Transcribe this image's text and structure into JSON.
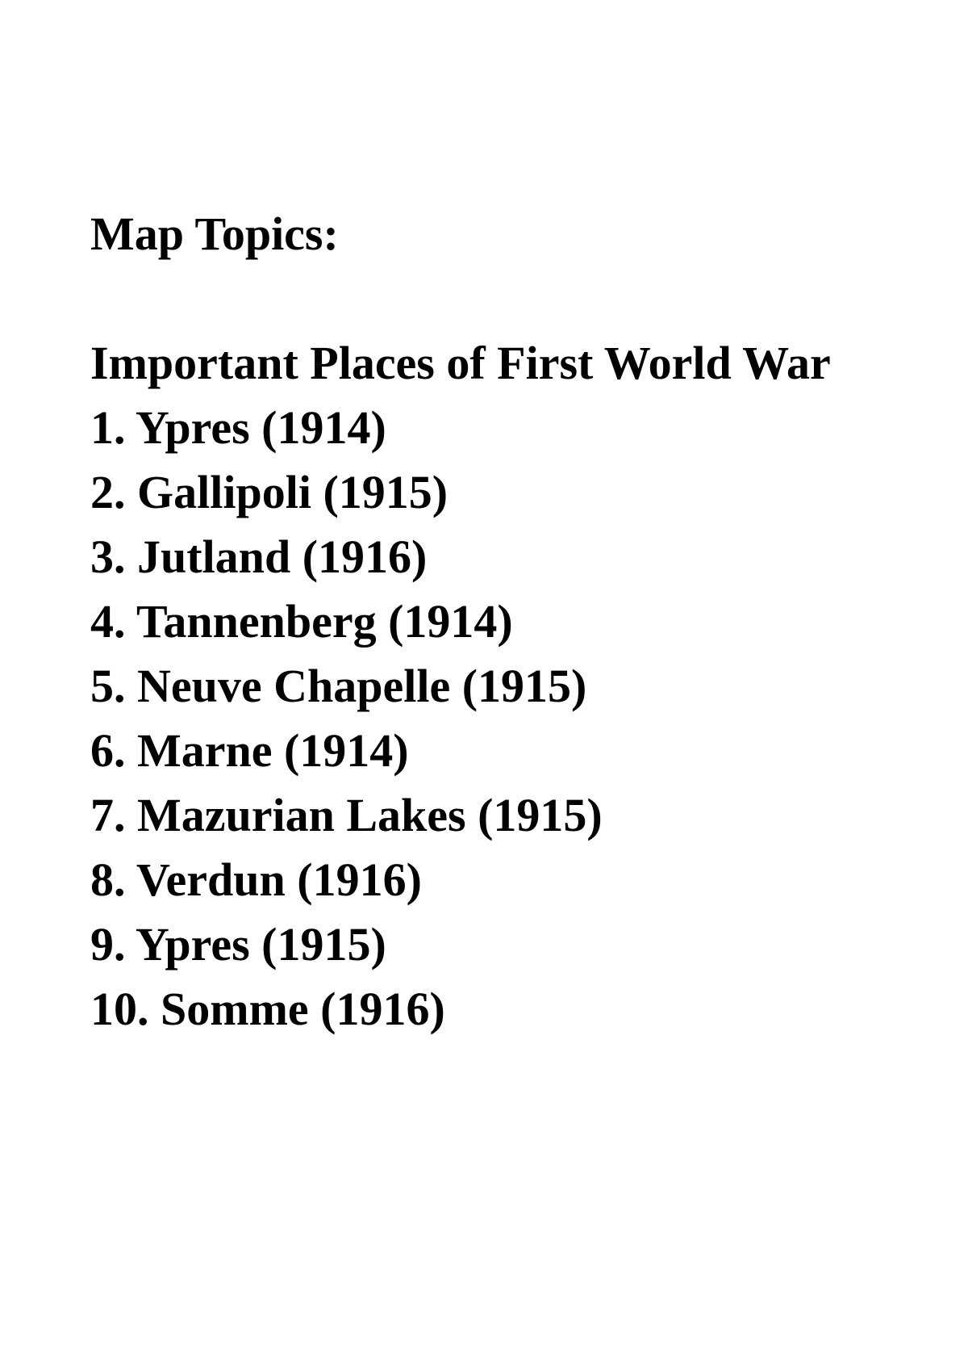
{
  "page": {
    "title": "Map Topics:"
  },
  "list": {
    "heading": "Important Places of First World War",
    "items": [
      {
        "number": "1.",
        "place": "Ypres",
        "year": "1914",
        "text": "1. Ypres (1914)"
      },
      {
        "number": "2.",
        "place": "Gallipoli",
        "year": "1915",
        "text": "2. Gallipoli (1915)"
      },
      {
        "number": "3.",
        "place": "Jutland",
        "year": "1916",
        "text": "3. Jutland (1916)"
      },
      {
        "number": "4.",
        "place": "Tannenberg",
        "year": "1914",
        "text": "4. Tannenberg (1914)"
      },
      {
        "number": "5.",
        "place": "Neuve Chapelle",
        "year": "1915",
        "text": "5. Neuve Chapelle (1915)"
      },
      {
        "number": "6.",
        "place": "Marne",
        "year": "1914",
        "text": "6. Marne (1914)"
      },
      {
        "number": "7.",
        "place": "Mazurian Lakes",
        "year": "1915",
        "text": "7. Mazurian Lakes (1915)"
      },
      {
        "number": "8.",
        "place": "Verdun",
        "year": "1916",
        "text": "8. Verdun (1916)"
      },
      {
        "number": "9.",
        "place": "Ypres",
        "year": "1915",
        "text": "9. Ypres (1915)"
      },
      {
        "number": "10.",
        "place": "Somme",
        "year": "1916",
        "text": "10. Somme (1916)"
      }
    ]
  },
  "colors": {
    "text": "#000000",
    "background": "#ffffff"
  }
}
